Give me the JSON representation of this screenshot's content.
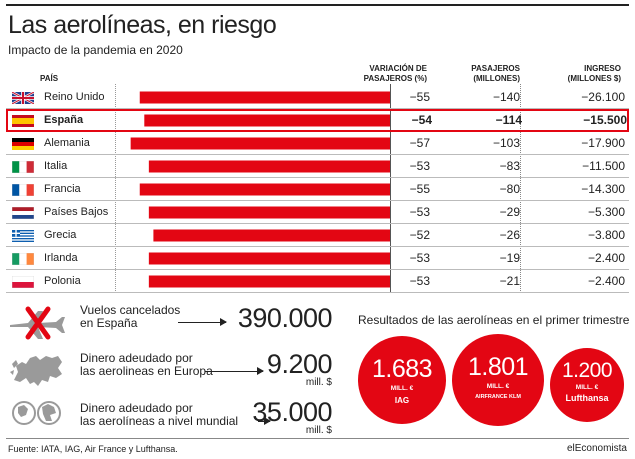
{
  "header": {
    "title": "Las aerolíneas, en riesgo",
    "subtitle": "Impacto de la pandemia en 2020"
  },
  "columns": {
    "country": "PAÍS",
    "variation": "VARIACIÓN DE PASAJEROS (%)",
    "passengers": "PASAJEROS (MILLONES)",
    "revenue": "INGRESO (MILLONES $)"
  },
  "highlight_country": "España",
  "chart_data": {
    "type": "bar",
    "orientation": "horizontal",
    "categories": [
      "Reino Unido",
      "España",
      "Alemania",
      "Italia",
      "Francia",
      "Países Bajos",
      "Grecia",
      "Irlanda",
      "Polonia"
    ],
    "series": [
      {
        "name": "VARIACIÓN DE PASAJEROS (%)",
        "values": [
          -55,
          -54,
          -57,
          -53,
          -55,
          -53,
          -52,
          -53,
          -53
        ],
        "color": "#e30613"
      }
    ],
    "table_columns": {
      "passengers": [
        -140,
        -114,
        -103,
        -83,
        -80,
        -29,
        -26,
        -19,
        -21
      ],
      "revenue": [
        -26100,
        -15500,
        -17900,
        -11500,
        -14300,
        -5300,
        -3800,
        -2400,
        -2400
      ]
    },
    "xlim": [
      -100,
      0
    ]
  },
  "rows": [
    {
      "country": "Reino Unido",
      "flag": "uk-flag-icon",
      "var": "−55",
      "pas": "−140",
      "ing": "−26.100"
    },
    {
      "country": "España",
      "flag": "spain-flag-icon",
      "var": "−54",
      "pas": "−114",
      "ing": "−15.500"
    },
    {
      "country": "Alemania",
      "flag": "germany-flag-icon",
      "var": "−57",
      "pas": "−103",
      "ing": "−17.900"
    },
    {
      "country": "Italia",
      "flag": "italy-flag-icon",
      "var": "−53",
      "pas": "−83",
      "ing": "−11.500"
    },
    {
      "country": "Francia",
      "flag": "france-flag-icon",
      "var": "−55",
      "pas": "−80",
      "ing": "−14.300"
    },
    {
      "country": "Países Bajos",
      "flag": "netherlands-flag-icon",
      "var": "−53",
      "pas": "−29",
      "ing": "−5.300"
    },
    {
      "country": "Grecia",
      "flag": "greece-flag-icon",
      "var": "−52",
      "pas": "−26",
      "ing": "−3.800"
    },
    {
      "country": "Irlanda",
      "flag": "ireland-flag-icon",
      "var": "−53",
      "pas": "−19",
      "ing": "−2.400"
    },
    {
      "country": "Polonia",
      "flag": "poland-flag-icon",
      "var": "−53",
      "pas": "−21",
      "ing": "−2.400"
    }
  ],
  "stats": [
    {
      "icon": "cancelled-plane-icon",
      "label_1": "Vuelos cancelados",
      "label_2": "en España",
      "value": "390.000",
      "unit": ""
    },
    {
      "icon": "europe-map-icon",
      "label_1": "Dinero adeudado por",
      "label_2": "las aerolineas en Europa",
      "value": "9.200",
      "unit": "mill. $"
    },
    {
      "icon": "globe-icon",
      "label_1": "Dinero adeudado por",
      "label_2": "las aerolíneas a nivel mundial",
      "value": "35.000",
      "unit": "mill. $"
    }
  ],
  "results": {
    "title": "Resultados de las aerolíneas en el primer trimestre",
    "items": [
      {
        "value": "1.683",
        "currency": "MILL. €",
        "logo": "IAG"
      },
      {
        "value": "1.801",
        "currency": "MILL. €",
        "logo": "AIRFRANCE KLM"
      },
      {
        "value": "1.200",
        "currency": "MILL. €",
        "logo": "Lufthansa"
      }
    ]
  },
  "footer": {
    "source": "Fuente: IATA, IAG, Air France y Lufthansa.",
    "brand": "elEconomista"
  },
  "colors": {
    "accent": "#e30613",
    "text": "#222222",
    "icon_gray": "#9a9a9a"
  }
}
